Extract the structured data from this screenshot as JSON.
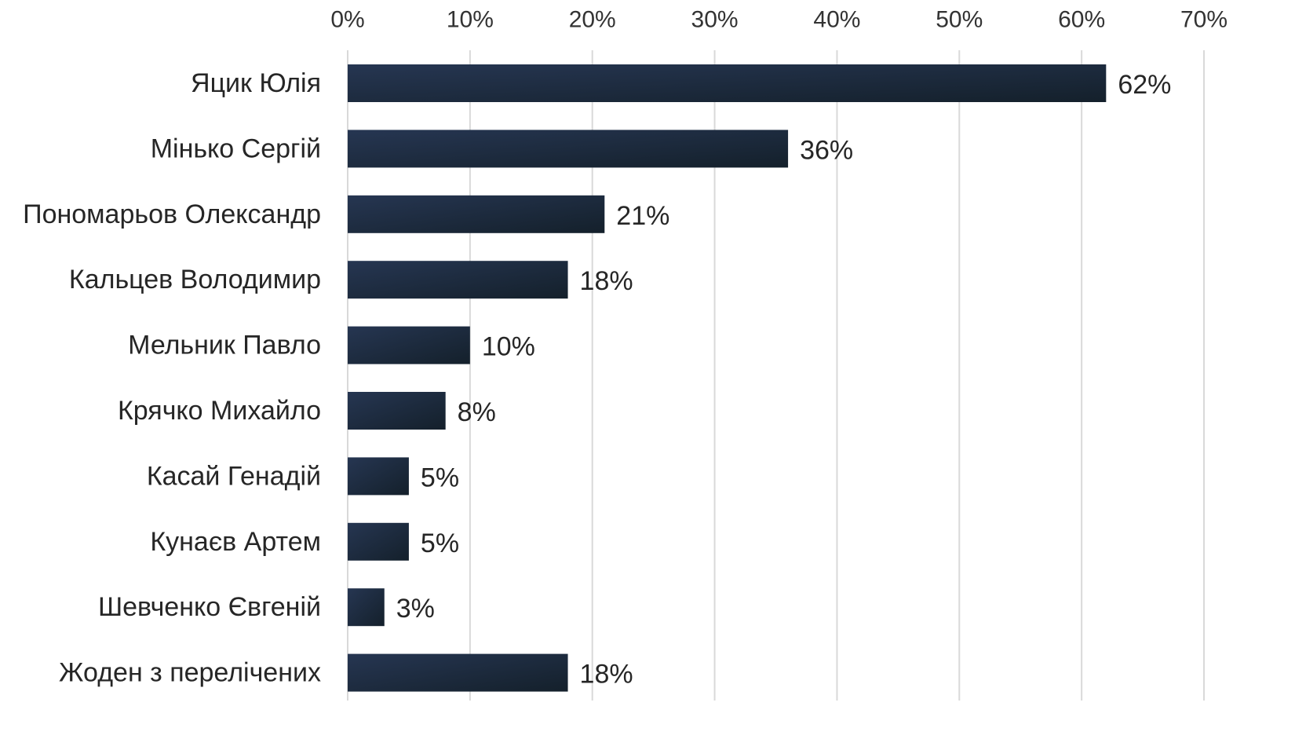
{
  "chart_data": {
    "type": "bar",
    "orientation": "horizontal",
    "categories": [
      "Яцик Юлія",
      "Мінько Сергій",
      "Пономарьов Олександр",
      "Кальцев Володимир",
      "Мельник Павло",
      "Крячко Михайло",
      "Касай Генадій",
      "Кунаєв Артем",
      "Шевченко Євгеній",
      "Жоден з перелічених"
    ],
    "values": [
      62,
      36,
      21,
      18,
      10,
      8,
      5,
      5,
      3,
      18
    ],
    "data_labels": [
      "62%",
      "36%",
      "21%",
      "18%",
      "10%",
      "8%",
      "5%",
      "5%",
      "3%",
      "18%"
    ],
    "xlim": [
      0,
      70
    ],
    "x_ticks": [
      0,
      10,
      20,
      30,
      40,
      50,
      60,
      70
    ],
    "x_tick_labels": [
      "0%",
      "10%",
      "20%",
      "30%",
      "40%",
      "50%",
      "60%",
      "70%"
    ],
    "x_axis_position": "top",
    "grid": true,
    "legend": "none",
    "bar_color_light": "#263652",
    "bar_color_dark": "#14202b"
  }
}
